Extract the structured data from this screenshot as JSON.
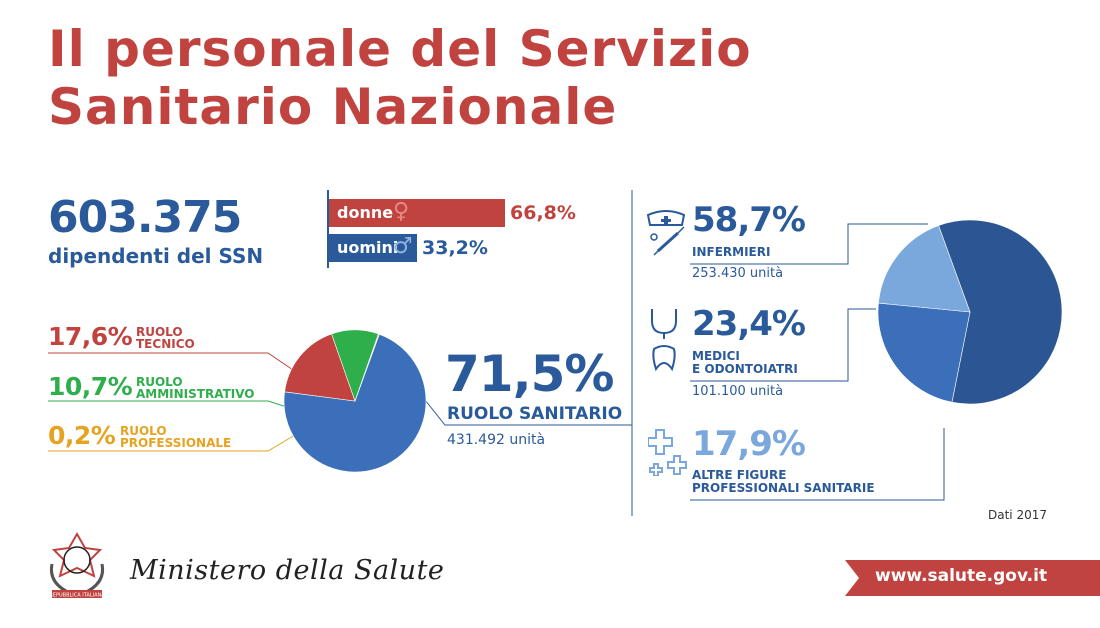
{
  "title": {
    "line1": "Il personale del Servizio",
    "line2": "Sanitario Nazionale"
  },
  "total": {
    "count": "603.375",
    "label": "dipendenti del SSN"
  },
  "gender": {
    "donne_label": "donne",
    "donne_pct": "66,8%",
    "uomini_label": "uomini",
    "uomini_pct": "33,2%"
  },
  "roles": {
    "tecnico_pct": "17,6%",
    "tecnico_line1": "RUOLO",
    "tecnico_line2": "TECNICO",
    "amministrativo_pct": "10,7%",
    "amministrativo_line1": "RUOLO",
    "amministrativo_line2": "AMMINISTRATIVO",
    "professionale_pct": "0,2%",
    "professionale_line1": "RUOLO",
    "professionale_line2": "PROFESSIONALE",
    "sanitario_pct": "71,5%",
    "sanitario_label": "RUOLO SANITARIO",
    "sanitario_units": "431.492 unità"
  },
  "sanitario_breakdown": {
    "infermieri_pct": "58,7%",
    "infermieri_label": "INFERMIERI",
    "infermieri_units": "253.430 unità",
    "medici_pct": "23,4%",
    "medici_line1": "MEDICI",
    "medici_line2": "E ODONTOIATRI",
    "medici_units": "101.100 unità",
    "altre_pct": "17,9%",
    "altre_line1": "ALTRE FIGURE",
    "altre_line2": "PROFESSIONALI SANITARIE"
  },
  "footer": {
    "dati": "Dati 2017",
    "ministero": "Ministero della Salute",
    "url": "www.salute.gov.it",
    "emblem_text": "REPUBBLICA ITALIANA"
  },
  "colors": {
    "red": "#c0433f",
    "blue": "#2a5a9a",
    "green": "#2fae4c",
    "orange": "#e6a321",
    "light_blue": "#7aa7dc",
    "mid_blue": "#3c6fb9",
    "dark_blue": "#2b5693"
  },
  "chart_data": [
    {
      "type": "pie",
      "categories": [
        "RUOLO SANITARIO",
        "RUOLO TECNICO",
        "RUOLO AMMINISTRATIVO",
        "RUOLO PROFESSIONALE"
      ],
      "values": [
        71.5,
        17.6,
        10.7,
        0.2
      ],
      "colors": [
        "#3c6fb9",
        "#c0433f",
        "#2fae4c",
        "#e6a321"
      ]
    },
    {
      "type": "pie",
      "categories": [
        "INFERMIERI",
        "MEDICI E ODONTOIATRI",
        "ALTRE FIGURE PROFESSIONALI SANITARIE"
      ],
      "values": [
        58.7,
        23.4,
        17.9
      ],
      "colors": [
        "#2b5693",
        "#3c6fb9",
        "#7aa7dc"
      ]
    }
  ]
}
